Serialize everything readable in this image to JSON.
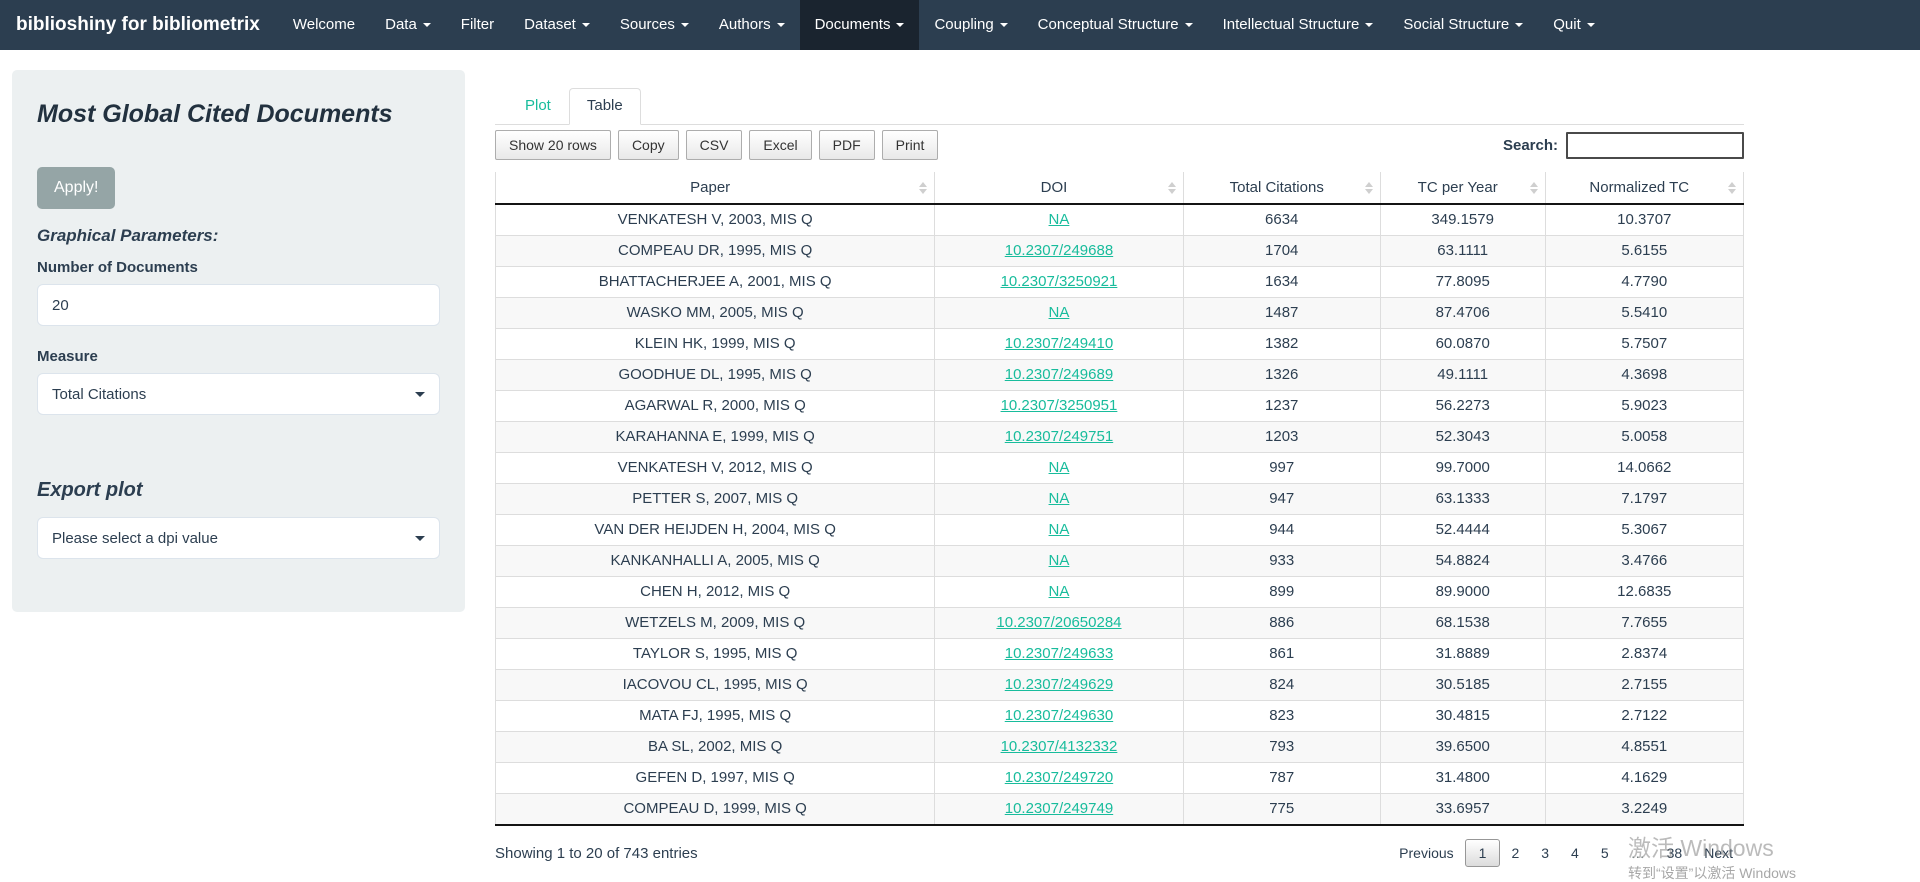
{
  "navbar": {
    "brand": "biblioshiny for bibliometrix",
    "items": [
      {
        "label": "Welcome",
        "caret": false,
        "active": false
      },
      {
        "label": "Data",
        "caret": true,
        "active": false
      },
      {
        "label": "Filter",
        "caret": false,
        "active": false
      },
      {
        "label": "Dataset",
        "caret": true,
        "active": false
      },
      {
        "label": "Sources",
        "caret": true,
        "active": false
      },
      {
        "label": "Authors",
        "caret": true,
        "active": false
      },
      {
        "label": "Documents",
        "caret": true,
        "active": true
      },
      {
        "label": "Coupling",
        "caret": true,
        "active": false
      },
      {
        "label": "Conceptual Structure",
        "caret": true,
        "active": false
      },
      {
        "label": "Intellectual Structure",
        "caret": true,
        "active": false
      },
      {
        "label": "Social Structure",
        "caret": true,
        "active": false
      },
      {
        "label": "Quit",
        "caret": true,
        "active": false
      }
    ]
  },
  "sidebar": {
    "title": "Most Global Cited Documents",
    "apply_label": "Apply!",
    "graphical_parameters_label": "Graphical Parameters:",
    "number_of_documents_label": "Number of Documents",
    "number_of_documents_value": "20",
    "measure_label": "Measure",
    "measure_value": "Total Citations",
    "export_plot_label": "Export plot",
    "dpi_select_value": "Please select a dpi value"
  },
  "tabs": [
    {
      "label": "Plot",
      "active": false
    },
    {
      "label": "Table",
      "active": true
    }
  ],
  "toolbar": {
    "buttons": [
      "Show 20 rows",
      "Copy",
      "CSV",
      "Excel",
      "PDF",
      "Print"
    ],
    "search_label": "Search:",
    "search_value": ""
  },
  "table": {
    "columns": [
      "Paper",
      "DOI",
      "Total Citations",
      "TC per Year",
      "Normalized TC"
    ],
    "column_widths": [
      "35.2%",
      "19.9%",
      "15.8%",
      "13.2%",
      "15.9%"
    ],
    "rows": [
      {
        "paper": "VENKATESH V, 2003, MIS Q",
        "doi": "NA",
        "total_citations": "6634",
        "tc_per_year": "349.1579",
        "normalized_tc": "10.3707"
      },
      {
        "paper": "COMPEAU DR, 1995, MIS Q",
        "doi": "10.2307/249688",
        "total_citations": "1704",
        "tc_per_year": "63.1111",
        "normalized_tc": "5.6155"
      },
      {
        "paper": "BHATTACHERJEE A, 2001, MIS Q",
        "doi": "10.2307/3250921",
        "total_citations": "1634",
        "tc_per_year": "77.8095",
        "normalized_tc": "4.7790"
      },
      {
        "paper": "WASKO MM, 2005, MIS Q",
        "doi": "NA",
        "total_citations": "1487",
        "tc_per_year": "87.4706",
        "normalized_tc": "5.5410"
      },
      {
        "paper": "KLEIN HK, 1999, MIS Q",
        "doi": "10.2307/249410",
        "total_citations": "1382",
        "tc_per_year": "60.0870",
        "normalized_tc": "5.7507"
      },
      {
        "paper": "GOODHUE DL, 1995, MIS Q",
        "doi": "10.2307/249689",
        "total_citations": "1326",
        "tc_per_year": "49.1111",
        "normalized_tc": "4.3698"
      },
      {
        "paper": "AGARWAL R, 2000, MIS Q",
        "doi": "10.2307/3250951",
        "total_citations": "1237",
        "tc_per_year": "56.2273",
        "normalized_tc": "5.9023"
      },
      {
        "paper": "KARAHANNA E, 1999, MIS Q",
        "doi": "10.2307/249751",
        "total_citations": "1203",
        "tc_per_year": "52.3043",
        "normalized_tc": "5.0058"
      },
      {
        "paper": "VENKATESH V, 2012, MIS Q",
        "doi": "NA",
        "total_citations": "997",
        "tc_per_year": "99.7000",
        "normalized_tc": "14.0662"
      },
      {
        "paper": "PETTER S, 2007, MIS Q",
        "doi": "NA",
        "total_citations": "947",
        "tc_per_year": "63.1333",
        "normalized_tc": "7.1797"
      },
      {
        "paper": "VAN DER HEIJDEN H, 2004, MIS Q",
        "doi": "NA",
        "total_citations": "944",
        "tc_per_year": "52.4444",
        "normalized_tc": "5.3067"
      },
      {
        "paper": "KANKANHALLI A, 2005, MIS Q",
        "doi": "NA",
        "total_citations": "933",
        "tc_per_year": "54.8824",
        "normalized_tc": "3.4766"
      },
      {
        "paper": "CHEN H, 2012, MIS Q",
        "doi": "NA",
        "total_citations": "899",
        "tc_per_year": "89.9000",
        "normalized_tc": "12.6835"
      },
      {
        "paper": "WETZELS M, 2009, MIS Q",
        "doi": "10.2307/20650284",
        "total_citations": "886",
        "tc_per_year": "68.1538",
        "normalized_tc": "7.7655"
      },
      {
        "paper": "TAYLOR S, 1995, MIS Q",
        "doi": "10.2307/249633",
        "total_citations": "861",
        "tc_per_year": "31.8889",
        "normalized_tc": "2.8374"
      },
      {
        "paper": "IACOVOU CL, 1995, MIS Q",
        "doi": "10.2307/249629",
        "total_citations": "824",
        "tc_per_year": "30.5185",
        "normalized_tc": "2.7155"
      },
      {
        "paper": "MATA FJ, 1995, MIS Q",
        "doi": "10.2307/249630",
        "total_citations": "823",
        "tc_per_year": "30.4815",
        "normalized_tc": "2.7122"
      },
      {
        "paper": "BA SL, 2002, MIS Q",
        "doi": "10.2307/4132332",
        "total_citations": "793",
        "tc_per_year": "39.6500",
        "normalized_tc": "4.8551"
      },
      {
        "paper": "GEFEN D, 1997, MIS Q",
        "doi": "10.2307/249720",
        "total_citations": "787",
        "tc_per_year": "31.4800",
        "normalized_tc": "4.1629"
      },
      {
        "paper": "COMPEAU D, 1999, MIS Q",
        "doi": "10.2307/249749",
        "total_citations": "775",
        "tc_per_year": "33.6957",
        "normalized_tc": "3.2249"
      }
    ]
  },
  "footer": {
    "info": "Showing 1 to 20 of 743 entries",
    "pages": [
      "Previous",
      "1",
      "2",
      "3",
      "4",
      "5",
      "…",
      "38",
      "Next"
    ],
    "active_page": "1"
  },
  "watermark": {
    "line1": "激活 Windows",
    "line2": "转到“设置”以激活 Windows"
  },
  "colors": {
    "accent": "#18bc9c",
    "navbar_bg": "#2c3e50",
    "navbar_active_bg": "#1a242f",
    "sidebar_bg": "#ecf0f1",
    "apply_button_bg": "#95a5a6"
  }
}
